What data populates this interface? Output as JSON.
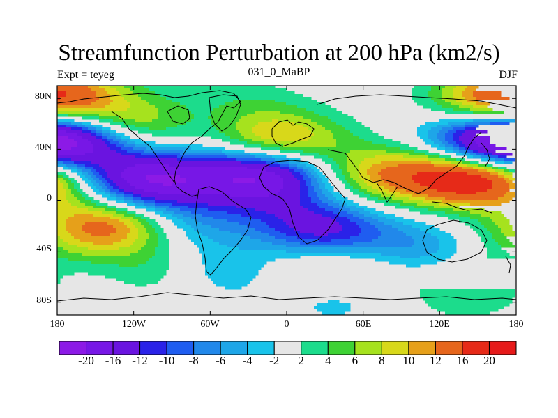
{
  "figure": {
    "title": "Streamfunction Perturbation at 200 hPa (km2/s)",
    "left_label": "Expt = teyeg",
    "center_label": "031_0_MaBP",
    "right_label": "DJF"
  },
  "map": {
    "lat_range": [
      -90,
      90
    ],
    "lon_range": [
      -180,
      180
    ],
    "lat_ticks": [
      "80N",
      "40N",
      "0",
      "40S",
      "80S"
    ],
    "lon_ticks": [
      "180",
      "120W",
      "60W",
      "0",
      "60E",
      "120E",
      "180"
    ],
    "background_color": "#e6e6e6"
  },
  "chart_data": {
    "type": "filled-contour-map",
    "title": "Streamfunction Perturbation at 200 hPa (km2/s)",
    "variable": "streamfunction perturbation",
    "units": "km2/s",
    "level": "200 hPa",
    "season": "DJF",
    "lat_range": [
      -90,
      90
    ],
    "lon_range": [
      -180,
      180
    ],
    "features": [
      {
        "lon": 165,
        "lat": 44,
        "value": -18
      },
      {
        "lon": -170,
        "lat": 47,
        "value": -14
      },
      {
        "lon": -110,
        "lat": 16,
        "value": -20
      },
      {
        "lon": -20,
        "lat": 22,
        "value": -20
      },
      {
        "lon": 22,
        "lat": -24,
        "value": -16
      },
      {
        "lon": 95,
        "lat": -40,
        "value": -8
      },
      {
        "lon": -72,
        "lat": -18,
        "value": -6
      },
      {
        "lon": -60,
        "lat": 60,
        "value": -5
      },
      {
        "lon": -45,
        "lat": -55,
        "value": -6
      },
      {
        "lon": 35,
        "lat": -75,
        "value": -4
      },
      {
        "lon": -160,
        "lat": -55,
        "value": -4
      },
      {
        "lon": -10,
        "lat": 0,
        "value": -4
      },
      {
        "lon": 145,
        "lat": 18,
        "value": 20
      },
      {
        "lon": 72,
        "lat": 20,
        "value": 10
      },
      {
        "lon": -10,
        "lat": 45,
        "value": 14
      },
      {
        "lon": -120,
        "lat": 58,
        "value": 10
      },
      {
        "lon": -140,
        "lat": -20,
        "value": 14
      },
      {
        "lon": -40,
        "lat": 72,
        "value": 5
      },
      {
        "lon": -5,
        "lat": -28,
        "value": 5
      },
      {
        "lon": 60,
        "lat": -48,
        "value": 6
      },
      {
        "lon": 178,
        "lat": -48,
        "value": 4
      },
      {
        "lon": -105,
        "lat": -55,
        "value": 5
      },
      {
        "lon": 5,
        "lat": -60,
        "value": 4
      },
      {
        "lon": 175,
        "lat": 80,
        "value": 18
      },
      {
        "lon": -172,
        "lat": 22,
        "value": 4
      },
      {
        "lon": 140,
        "lat": -72,
        "value": 4
      }
    ],
    "colorbar": {
      "colors": [
        "#8c1ae6",
        "#7717e6",
        "#6a14e0",
        "#2a22e8",
        "#1f5df0",
        "#2188ea",
        "#1ea6e8",
        "#19c3ea",
        "#e6e6e6",
        "#1cdc8c",
        "#3ed234",
        "#a6e21e",
        "#d8d81a",
        "#e6a01a",
        "#e6661c",
        "#e62a18",
        "#e61a1a"
      ],
      "labels": [
        "-20",
        "-16",
        "-12",
        "-10",
        "-8",
        "-6",
        "-4",
        "-2",
        "2",
        "4",
        "6",
        "8",
        "10",
        "12",
        "16",
        "20"
      ]
    }
  }
}
